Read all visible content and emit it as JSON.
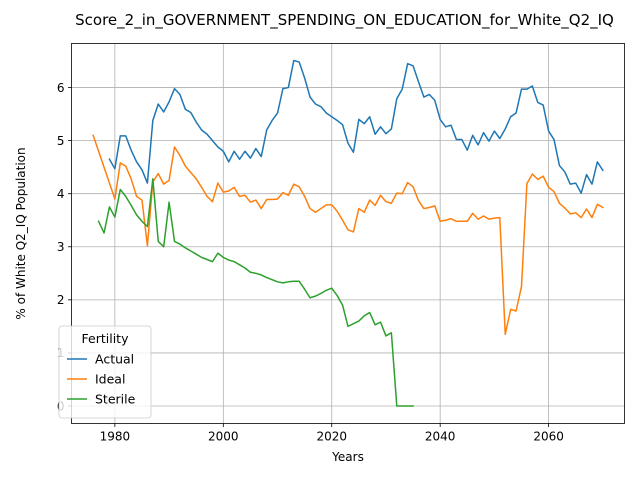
{
  "chart_data": {
    "type": "line",
    "title": "Score_2_in_GOVERNMENT_SPENDING_ON_EDUCATION_for_White_Q2_IQ",
    "xlabel": "Years",
    "ylabel": "% of White Q2_IQ Population",
    "xlim": [
      1972,
      2074
    ],
    "ylim": [
      -0.33,
      6.83
    ],
    "xticks": [
      1980,
      2000,
      2020,
      2040,
      2060
    ],
    "xtick_labels": [
      "1980",
      "2000",
      "2020",
      "2040",
      "2060"
    ],
    "yticks": [
      0,
      1,
      2,
      3,
      4,
      5,
      6
    ],
    "ytick_labels": [
      "0",
      "1",
      "2",
      "3",
      "4",
      "5",
      "6"
    ],
    "grid": true,
    "legend": {
      "title": "Fertility",
      "position": "lower-left"
    },
    "series": [
      {
        "name": "Actual",
        "color": "#1f77b4",
        "x": [
          1979,
          1980,
          1981,
          1982,
          1983,
          1984,
          1985,
          1986,
          1987,
          1988,
          1989,
          1990,
          1991,
          1992,
          1993,
          1994,
          1995,
          1996,
          1997,
          1998,
          1999,
          2000,
          2001,
          2002,
          2003,
          2004,
          2005,
          2006,
          2007,
          2008,
          2009,
          2010,
          2011,
          2012,
          2013,
          2014,
          2015,
          2016,
          2017,
          2018,
          2019,
          2020,
          2021,
          2022,
          2023,
          2024,
          2025,
          2026,
          2027,
          2028,
          2029,
          2030,
          2031,
          2032,
          2033,
          2034,
          2035,
          2036,
          2037,
          2038,
          2039,
          2040,
          2041,
          2042,
          2043,
          2044,
          2045,
          2046,
          2047,
          2048,
          2049,
          2050,
          2051,
          2052,
          2053,
          2054,
          2055,
          2056,
          2057,
          2058,
          2059,
          2060,
          2061,
          2062,
          2063,
          2064,
          2065,
          2066,
          2067,
          2068,
          2069,
          2070
        ],
        "y": [
          4.65,
          4.47,
          5.09,
          5.09,
          4.82,
          4.6,
          4.45,
          4.2,
          5.38,
          5.69,
          5.54,
          5.73,
          5.98,
          5.87,
          5.59,
          5.53,
          5.35,
          5.2,
          5.12,
          5.0,
          4.88,
          4.8,
          4.6,
          4.8,
          4.65,
          4.8,
          4.67,
          4.85,
          4.7,
          5.2,
          5.38,
          5.52,
          5.98,
          6.0,
          6.51,
          6.48,
          6.18,
          5.82,
          5.69,
          5.64,
          5.52,
          5.45,
          5.38,
          5.3,
          4.95,
          4.78,
          5.4,
          5.32,
          5.45,
          5.12,
          5.26,
          5.13,
          5.22,
          5.79,
          5.97,
          6.45,
          6.41,
          6.11,
          5.82,
          5.87,
          5.76,
          5.4,
          5.26,
          5.29,
          5.02,
          5.02,
          4.82,
          5.1,
          4.92,
          5.15,
          4.99,
          5.18,
          5.04,
          5.22,
          5.45,
          5.52,
          5.97,
          5.97,
          6.03,
          5.72,
          5.67,
          5.18,
          5.02,
          4.53,
          4.41,
          4.18,
          4.2,
          4.01,
          4.36,
          4.18,
          4.6,
          4.44
        ]
      },
      {
        "name": "Ideal",
        "color": "#ff7f0e",
        "x": [
          1976,
          1977,
          1978,
          1979,
          1980,
          1981,
          1982,
          1983,
          1984,
          1985,
          1986,
          1987,
          1988,
          1989,
          1990,
          1991,
          1992,
          1993,
          1994,
          1995,
          1996,
          1997,
          1998,
          1999,
          2000,
          2001,
          2002,
          2003,
          2004,
          2005,
          2006,
          2007,
          2008,
          2009,
          2010,
          2011,
          2012,
          2013,
          2014,
          2015,
          2016,
          2017,
          2018,
          2019,
          2020,
          2021,
          2022,
          2023,
          2024,
          2025,
          2026,
          2027,
          2028,
          2029,
          2030,
          2031,
          2032,
          2033,
          2034,
          2035,
          2036,
          2037,
          2038,
          2039,
          2040,
          2041,
          2042,
          2043,
          2044,
          2045,
          2046,
          2047,
          2048,
          2049,
          2050,
          2051,
          2052,
          2053,
          2054,
          2055,
          2056,
          2057,
          2058,
          2059,
          2060,
          2061,
          2062,
          2063,
          2064,
          2065,
          2066,
          2067,
          2068,
          2069,
          2070
        ],
        "y": [
          5.1,
          4.8,
          4.5,
          4.2,
          3.9,
          4.58,
          4.52,
          4.28,
          3.95,
          3.88,
          3.02,
          4.22,
          4.38,
          4.18,
          4.25,
          4.88,
          4.72,
          4.52,
          4.4,
          4.28,
          4.12,
          3.95,
          3.85,
          4.2,
          4.03,
          4.05,
          4.12,
          3.95,
          3.97,
          3.84,
          3.88,
          3.72,
          3.89,
          3.89,
          3.9,
          4.02,
          3.97,
          4.18,
          4.13,
          3.95,
          3.72,
          3.65,
          3.72,
          3.79,
          3.79,
          3.67,
          3.5,
          3.32,
          3.28,
          3.72,
          3.65,
          3.88,
          3.78,
          3.97,
          3.85,
          3.82,
          4.01,
          4.0,
          4.21,
          4.13,
          3.87,
          3.72,
          3.74,
          3.77,
          3.48,
          3.5,
          3.53,
          3.48,
          3.48,
          3.48,
          3.63,
          3.52,
          3.58,
          3.52,
          3.54,
          3.55,
          1.35,
          1.82,
          1.79,
          2.25,
          4.19,
          4.37,
          4.27,
          4.33,
          4.12,
          4.04,
          3.82,
          3.73,
          3.62,
          3.64,
          3.55,
          3.71,
          3.55,
          3.8,
          3.74
        ]
      },
      {
        "name": "Sterile",
        "color": "#2ca02c",
        "x": [
          1977,
          1978,
          1979,
          1980,
          1981,
          1982,
          1983,
          1984,
          1985,
          1986,
          1987,
          1988,
          1989,
          1990,
          1991,
          1992,
          1993,
          1994,
          1995,
          1996,
          1997,
          1998,
          1999,
          2000,
          2001,
          2002,
          2003,
          2004,
          2005,
          2006,
          2007,
          2008,
          2009,
          2010,
          2011,
          2012,
          2013,
          2014,
          2015,
          2016,
          2017,
          2018,
          2019,
          2020,
          2021,
          2022,
          2023,
          2024,
          2025,
          2026,
          2027,
          2028,
          2029,
          2030,
          2031,
          2032,
          2033,
          2034,
          2035
        ],
        "y": [
          3.48,
          3.26,
          3.75,
          3.56,
          4.08,
          3.95,
          3.78,
          3.6,
          3.48,
          3.38,
          4.28,
          3.1,
          3.0,
          3.84,
          3.1,
          3.05,
          2.98,
          2.92,
          2.86,
          2.8,
          2.76,
          2.72,
          2.88,
          2.8,
          2.75,
          2.72,
          2.66,
          2.6,
          2.52,
          2.5,
          2.47,
          2.42,
          2.38,
          2.34,
          2.32,
          2.34,
          2.35,
          2.35,
          2.2,
          2.04,
          2.07,
          2.12,
          2.18,
          2.22,
          2.08,
          1.9,
          1.5,
          1.55,
          1.6,
          1.7,
          1.76,
          1.53,
          1.58,
          1.32,
          1.38,
          0.0,
          0.0,
          0.0,
          0.0
        ]
      }
    ]
  }
}
